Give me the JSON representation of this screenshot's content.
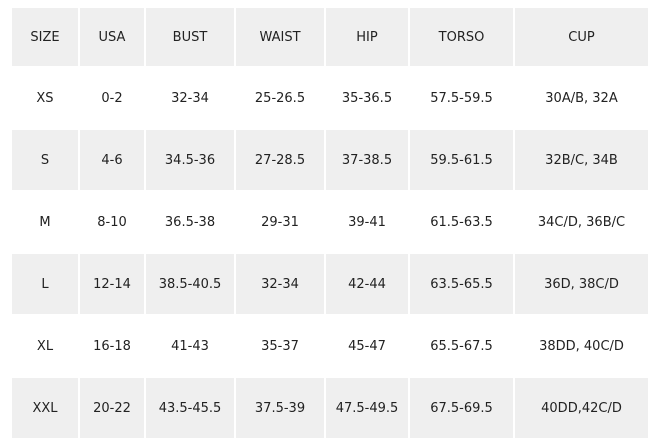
{
  "table": {
    "header": [
      "SIZE",
      "USA",
      "BUST",
      "WAIST",
      "HIP",
      "TORSO",
      "CUP"
    ],
    "rows": [
      [
        "XS",
        "0-2",
        "32-34",
        "25-26.5",
        "35-36.5",
        "57.5-59.5",
        "30A/B, 32A"
      ],
      [
        "S",
        "4-6",
        "34.5-36",
        "27-28.5",
        "37-38.5",
        "59.5-61.5",
        "32B/C, 34B"
      ],
      [
        "M",
        "8-10",
        "36.5-38",
        "29-31",
        "39-41",
        "61.5-63.5",
        "34C/D, 36B/C"
      ],
      [
        "L",
        "12-14",
        "38.5-40.5",
        "32-34",
        "42-44",
        "63.5-65.5",
        "36D, 38C/D"
      ],
      [
        "XL",
        "16-18",
        "41-43",
        "35-37",
        "45-47",
        "65.5-67.5",
        "38DD, 40C/D"
      ],
      [
        "XXL",
        "20-22",
        "43.5-45.5",
        "37.5-39",
        "47.5-49.5",
        "67.5-69.5",
        "40DD,42C/D"
      ]
    ]
  }
}
